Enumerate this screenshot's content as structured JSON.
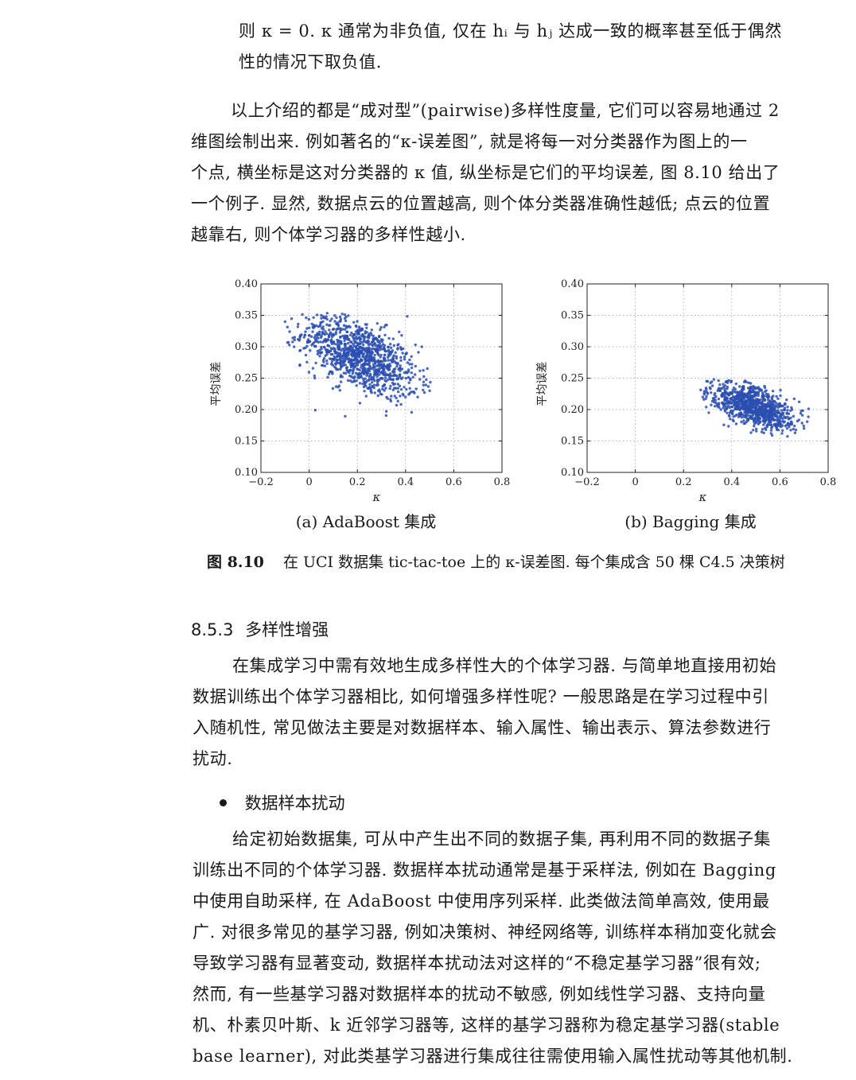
{
  "top_paragraph": {
    "lines": [
      "则 κ = 0. κ 通常为非负值, 仅在 hᵢ 与 hⱼ 达成一致的概率甚至低于偶然",
      "性的情况下取负值."
    ]
  },
  "para_pairwise": {
    "lines": [
      "以上介绍的都是“成对型”(pairwise)多样性度量, 它们可以容易地通过 2",
      "维图绘制出来. 例如著名的“κ-误差图”, 就是将每一对分类器作为图上的一",
      "个点, 横坐标是这对分类器的 κ 值, 纵坐标是它们的平均误差, 图 8.10 给出了",
      "一个例子. 显然, 数据点云的位置越高, 则个体分类器准确性越低; 点云的位置",
      "越靠右, 则个体学习器的多样性越小."
    ]
  },
  "figure": {
    "caption_number": "图 8.10",
    "caption_text": "在 UCI 数据集 tic-tac-toe 上的 κ-误差图. 每个集成含 50 棵 C4.5 决策树",
    "marker_color": "#2a4fb0"
  },
  "chart_data": [
    {
      "type": "scatter",
      "subcaption": "(a) AdaBoost 集成",
      "xlabel": "κ",
      "ylabel": "平均误差",
      "xlim": [
        -0.2,
        0.8
      ],
      "ylim": [
        0.1,
        0.4
      ],
      "xticks": [
        "−0.2",
        "0",
        "0.2",
        "0.4",
        "0.6",
        "0.8"
      ],
      "yticks": [
        "0.10",
        "0.15",
        "0.20",
        "0.25",
        "0.30",
        "0.35",
        "0.40"
      ],
      "grid": "dotted",
      "cloud": {
        "x_center": 0.21,
        "y_center": 0.285,
        "x_range": [
          -0.1,
          0.52
        ],
        "y_range": [
          0.185,
          0.355
        ],
        "n_points": 1100,
        "trend": "negative"
      },
      "sample_points": [
        [
          -0.1,
          0.34
        ],
        [
          0.0,
          0.33
        ],
        [
          0.05,
          0.35
        ],
        [
          0.1,
          0.32
        ],
        [
          0.15,
          0.3
        ],
        [
          0.2,
          0.28
        ],
        [
          0.25,
          0.27
        ],
        [
          0.3,
          0.25
        ],
        [
          0.35,
          0.24
        ],
        [
          0.4,
          0.22
        ],
        [
          0.45,
          0.22
        ],
        [
          0.5,
          0.23
        ]
      ]
    },
    {
      "type": "scatter",
      "subcaption": "(b) Bagging 集成",
      "xlabel": "κ",
      "ylabel": "平均误差",
      "xlim": [
        -0.2,
        0.8
      ],
      "ylim": [
        0.1,
        0.4
      ],
      "xticks": [
        "−0.2",
        "0",
        "0.2",
        "0.4",
        "0.6",
        "0.8"
      ],
      "yticks": [
        "0.10",
        "0.15",
        "0.20",
        "0.25",
        "0.30",
        "0.35",
        "0.40"
      ],
      "grid": "dotted",
      "cloud": {
        "x_center": 0.49,
        "y_center": 0.205,
        "x_range": [
          0.27,
          0.72
        ],
        "y_range": [
          0.155,
          0.25
        ],
        "n_points": 900,
        "trend": "negative"
      },
      "sample_points": [
        [
          0.28,
          0.22
        ],
        [
          0.3,
          0.245
        ],
        [
          0.35,
          0.23
        ],
        [
          0.4,
          0.21
        ],
        [
          0.45,
          0.21
        ],
        [
          0.5,
          0.2
        ],
        [
          0.55,
          0.19
        ],
        [
          0.6,
          0.18
        ],
        [
          0.65,
          0.2
        ],
        [
          0.7,
          0.17
        ]
      ]
    }
  ],
  "section": {
    "number": "8.5.3",
    "title": "多样性增强"
  },
  "para_diversity": {
    "lines": [
      "在集成学习中需有效地生成多样性大的个体学习器. 与简单地直接用初始",
      "数据训练出个体学习器相比, 如何增强多样性呢? 一般思路是在学习过程中引",
      "入随机性, 常见做法主要是对数据样本、输入属性、输出表示、算法参数进行",
      "扰动."
    ]
  },
  "bullet": {
    "label": "数据样本扰动"
  },
  "para_sample": {
    "lines": [
      "给定初始数据集, 可从中产生出不同的数据子集, 再利用不同的数据子集",
      "训练出不同的个体学习器. 数据样本扰动通常是基于采样法, 例如在 Bagging",
      "中使用自助采样, 在 AdaBoost 中使用序列采样. 此类做法简单高效, 使用最",
      "广. 对很多常见的基学习器, 例如决策树、神经网络等, 训练样本稍加变化就会",
      "导致学习器有显著变动, 数据样本扰动法对这样的“不稳定基学习器”很有效;",
      "然而, 有一些基学习器对数据样本的扰动不敏感, 例如线性学习器、支持向量",
      "机、朴素贝叶斯、k 近邻学习器等, 这样的基学习器称为稳定基学习器(stable",
      "base learner), 对此类基学习器进行集成往往需使用输入属性扰动等其他机制."
    ]
  }
}
